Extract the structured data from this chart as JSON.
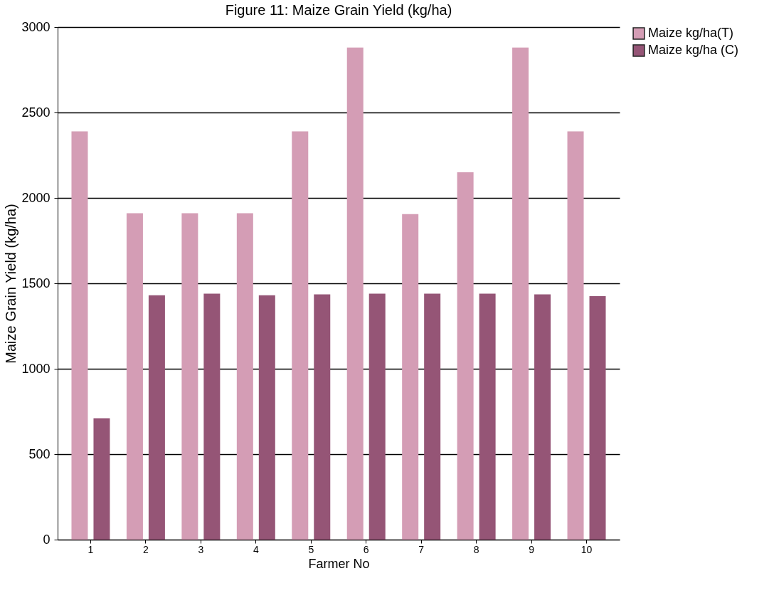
{
  "chart_data": {
    "type": "bar",
    "title": "Figure 11: Maize Grain Yield (kg/ha)",
    "xlabel": "Farmer No",
    "ylabel": "Maize Grain Yield (kg/ha)",
    "categories": [
      "1",
      "2",
      "3",
      "4",
      "5",
      "6",
      "7",
      "8",
      "9",
      "10"
    ],
    "series": [
      {
        "name": "Maize kg/ha(T)",
        "color": "#d49db5",
        "values": [
          2390,
          1910,
          1910,
          1910,
          2390,
          2880,
          1905,
          2150,
          2880,
          2390
        ]
      },
      {
        "name": "Maize kg/ha (C)",
        "color": "#955576",
        "values": [
          710,
          1430,
          1440,
          1430,
          1435,
          1440,
          1440,
          1440,
          1435,
          1425
        ]
      }
    ],
    "ylim": [
      0,
      3000
    ],
    "yticks": [
      0,
      500,
      1000,
      1500,
      2000,
      2500,
      3000
    ],
    "grid": "y",
    "legend": "top right"
  }
}
